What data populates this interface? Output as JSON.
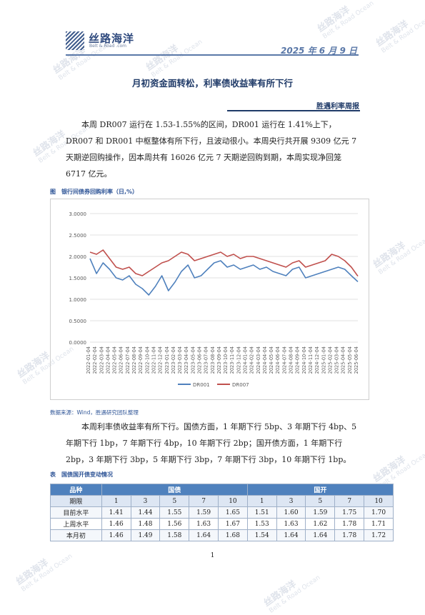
{
  "header": {
    "logo_title": "丝路海洋",
    "logo_sub": "Belt & Road .com",
    "date": "2025 年 6 月 9 日"
  },
  "title": "月初资金面转松，利率债收益率有所下行",
  "section": "胜遇利率周报",
  "paragraph1": "本周 DR007 运行在 1.53-1.55%的区间，DR001 运行在 1.41%上下，DR007 和 DR001 中枢整体有所下行，且波动很小。本周央行共开展 9309 亿元 7 天期逆回购操作，因本周共有 16026 亿元 7 天期逆回购到期，本周实现净回笼 6717 亿元。",
  "figure_label": "图　银行间债券回购利率（日,%）",
  "source": "数据来源：Wind，胜遇研究团队整理",
  "paragraph2": "本周利率债收益率有所下行。国债方面，1 年期下行 5bp、3 年期下行 4bp、5 年期下行 1bp，7 年期下行 4bp，10 年期下行 2bp；国开债方面，1 年期下行 2bp，3 年期下行 3bp，5 年期下行 3bp，7 年期下行 3bp，10 年期下行 1bp。",
  "table_label": "表　国债国开债变动情况",
  "table": {
    "col_variety": "品种",
    "group_treasury": "国债",
    "group_cdb": "国开",
    "col_term": "期限",
    "terms": [
      "1",
      "3",
      "5",
      "7",
      "10",
      "1",
      "3",
      "5",
      "7",
      "10"
    ],
    "rows": [
      {
        "label": "目前水平",
        "values": [
          "1.41",
          "1.44",
          "1.55",
          "1.59",
          "1.65",
          "1.51",
          "1.60",
          "1.59",
          "1.75",
          "1.70"
        ]
      },
      {
        "label": "上周水平",
        "values": [
          "1.46",
          "1.48",
          "1.56",
          "1.63",
          "1.67",
          "1.53",
          "1.63",
          "1.62",
          "1.78",
          "1.71"
        ]
      },
      {
        "label": "本月初",
        "values": [
          "1.46",
          "1.49",
          "1.58",
          "1.64",
          "1.68",
          "1.54",
          "1.64",
          "1.64",
          "1.78",
          "1.72"
        ]
      }
    ]
  },
  "page_number": "1",
  "watermark": {
    "cn": "丝路海洋",
    "en": "Belt & Road Ocean"
  },
  "chart_data": {
    "type": "line",
    "title": "",
    "ylim": [
      0,
      3
    ],
    "y_ticks": [
      "3.0000",
      "2.5000",
      "2.0000",
      "1.5000",
      "1.0000",
      "0.5000",
      "0.0000"
    ],
    "x_ticks": [
      "2022-01-04",
      "2022-02-04",
      "2022-03-04",
      "2022-04-04",
      "2022-05-04",
      "2022-06-04",
      "2022-07-04",
      "2022-08-04",
      "2022-09-04",
      "2022-10-04",
      "2022-11-04",
      "2022-12-04",
      "2023-01-04",
      "2023-02-04",
      "2023-03-04",
      "2023-04-04",
      "2023-05-04",
      "2023-06-04",
      "2023-07-04",
      "2023-08-04",
      "2023-09-04",
      "2023-10-04",
      "2023-11-04",
      "2023-12-04",
      "2024-01-04",
      "2024-02-04",
      "2024-03-04",
      "2024-04-04",
      "2024-05-04",
      "2024-06-04",
      "2024-07-04",
      "2024-08-04",
      "2024-09-04",
      "2024-10-04",
      "2024-11-04",
      "2024-12-04",
      "2025-01-04",
      "2025-02-04",
      "2025-03-04",
      "2025-04-04",
      "2025-05-04",
      "2025-06-04"
    ],
    "legend_position": "bottom",
    "grid": true,
    "series": [
      {
        "name": "DR001",
        "color": "#4f81bd",
        "values": [
          1.95,
          1.6,
          1.85,
          1.7,
          1.5,
          1.45,
          1.55,
          1.35,
          1.25,
          1.1,
          1.3,
          1.55,
          1.2,
          1.4,
          1.65,
          1.8,
          1.5,
          1.55,
          1.7,
          1.85,
          1.9,
          1.75,
          1.8,
          1.7,
          1.75,
          1.8,
          1.7,
          1.75,
          1.65,
          1.6,
          1.55,
          1.7,
          1.75,
          1.5,
          1.55,
          1.6,
          1.65,
          1.7,
          1.75,
          1.7,
          1.55,
          1.41
        ]
      },
      {
        "name": "DR007",
        "color": "#c0504d",
        "values": [
          2.1,
          2.05,
          2.15,
          1.95,
          1.75,
          1.7,
          1.75,
          1.6,
          1.55,
          1.65,
          1.75,
          1.85,
          1.9,
          2.0,
          2.1,
          2.05,
          1.9,
          1.95,
          2.0,
          2.05,
          2.1,
          2.0,
          2.05,
          1.95,
          2.0,
          2.0,
          1.95,
          1.9,
          1.85,
          1.8,
          1.75,
          1.85,
          1.9,
          1.75,
          1.8,
          1.85,
          1.9,
          2.05,
          2.0,
          1.9,
          1.75,
          1.54
        ]
      }
    ]
  }
}
